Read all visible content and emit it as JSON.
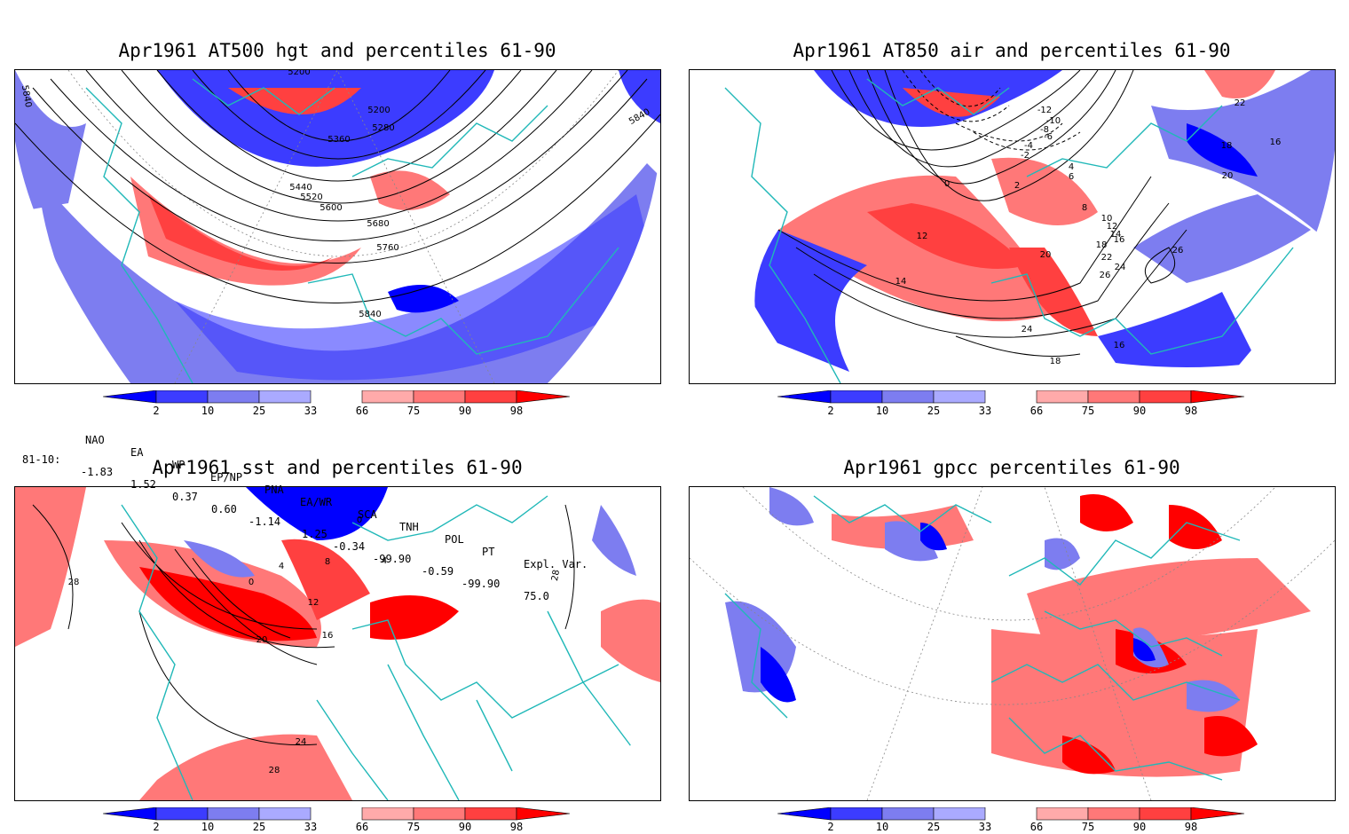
{
  "panels": [
    {
      "id": "z500",
      "title": "Apr1961 AT500 hgt and percentiles 61-90",
      "contour_labels": [
        "5200",
        "5200",
        "5280",
        "5360",
        "5440",
        "5520",
        "5600",
        "5680",
        "5760",
        "5840",
        "5840",
        "5840"
      ]
    },
    {
      "id": "t850",
      "title": "Apr1961 AT850 air and percentiles 61-90",
      "contour_labels": [
        "-12",
        "-10",
        "-8",
        "-6",
        "-4",
        "-2",
        "0",
        "2",
        "4",
        "6",
        "8",
        "10",
        "12",
        "12",
        "14",
        "16",
        "16",
        "18",
        "18",
        "20",
        "20",
        "22",
        "22",
        "24",
        "24",
        "26",
        "26",
        "16",
        "14",
        "18"
      ]
    },
    {
      "id": "sst",
      "title": "Apr1961 sst and percentiles 61-90",
      "contour_labels": [
        "0",
        "4",
        "8",
        "12",
        "16",
        "20",
        "24",
        "28",
        "28",
        "28",
        "0",
        "4"
      ]
    },
    {
      "id": "gpcc",
      "title": "Apr1961 gpcc percentiles 61-90",
      "contour_labels": []
    }
  ],
  "colorbar": {
    "labels": [
      "2",
      "10",
      "25",
      "33",
      "66",
      "75",
      "90",
      "98"
    ],
    "colors": {
      "blue_dark": "#0000ff",
      "blue_mid": "#3c3cff",
      "blue_light": "#7d7df0",
      "blue_pale": "#aaaaff",
      "red_pale": "#ffaaaa",
      "red_light": "#ff7878",
      "red_mid": "#ff4040",
      "red_dark": "#ff0000"
    }
  },
  "indices": {
    "headers": [
      "NAO",
      "EA",
      "WP",
      "EP/NP",
      "PNA",
      "EA/WR",
      "SCA",
      "TNH",
      "POL",
      "PT",
      "Expl. Var."
    ],
    "row_label": "81-10:",
    "values": [
      "-1.83",
      "1.52",
      "0.37",
      "0.60",
      "-1.14",
      "1.25",
      "-0.34",
      "-99.90",
      "-0.59",
      "-99.90",
      "75.0"
    ]
  },
  "colors": {
    "coast": "#20b8b8",
    "contour": "#000000",
    "grid": "#888888"
  }
}
